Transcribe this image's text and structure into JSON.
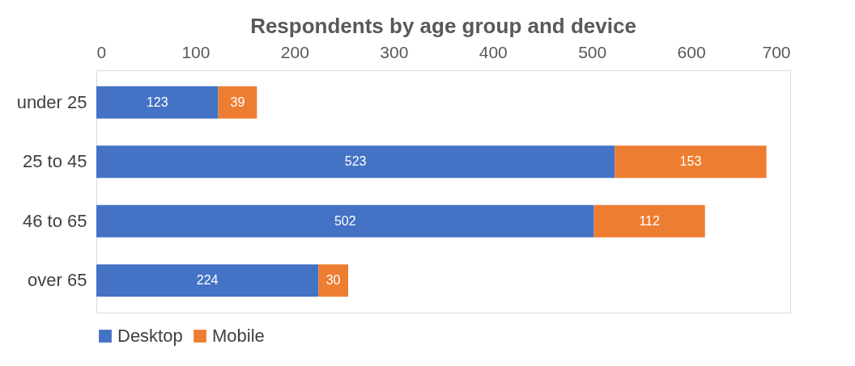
{
  "chart_data": {
    "type": "bar",
    "orientation": "horizontal",
    "stacked": true,
    "title": "Respondents by age group and device",
    "categories": [
      "under 25",
      "25 to 45",
      "46 to 65",
      "over 65"
    ],
    "series": [
      {
        "name": "Desktop",
        "color": "#4472c4",
        "values": [
          123,
          523,
          502,
          224
        ]
      },
      {
        "name": "Mobile",
        "color": "#ed7d31",
        "values": [
          39,
          153,
          112,
          30
        ]
      }
    ],
    "xlim": [
      0,
      700
    ],
    "xticks": [
      0,
      100,
      200,
      300,
      400,
      500,
      600,
      700
    ],
    "grid": false,
    "legend": "bottom",
    "data_labels": true
  }
}
